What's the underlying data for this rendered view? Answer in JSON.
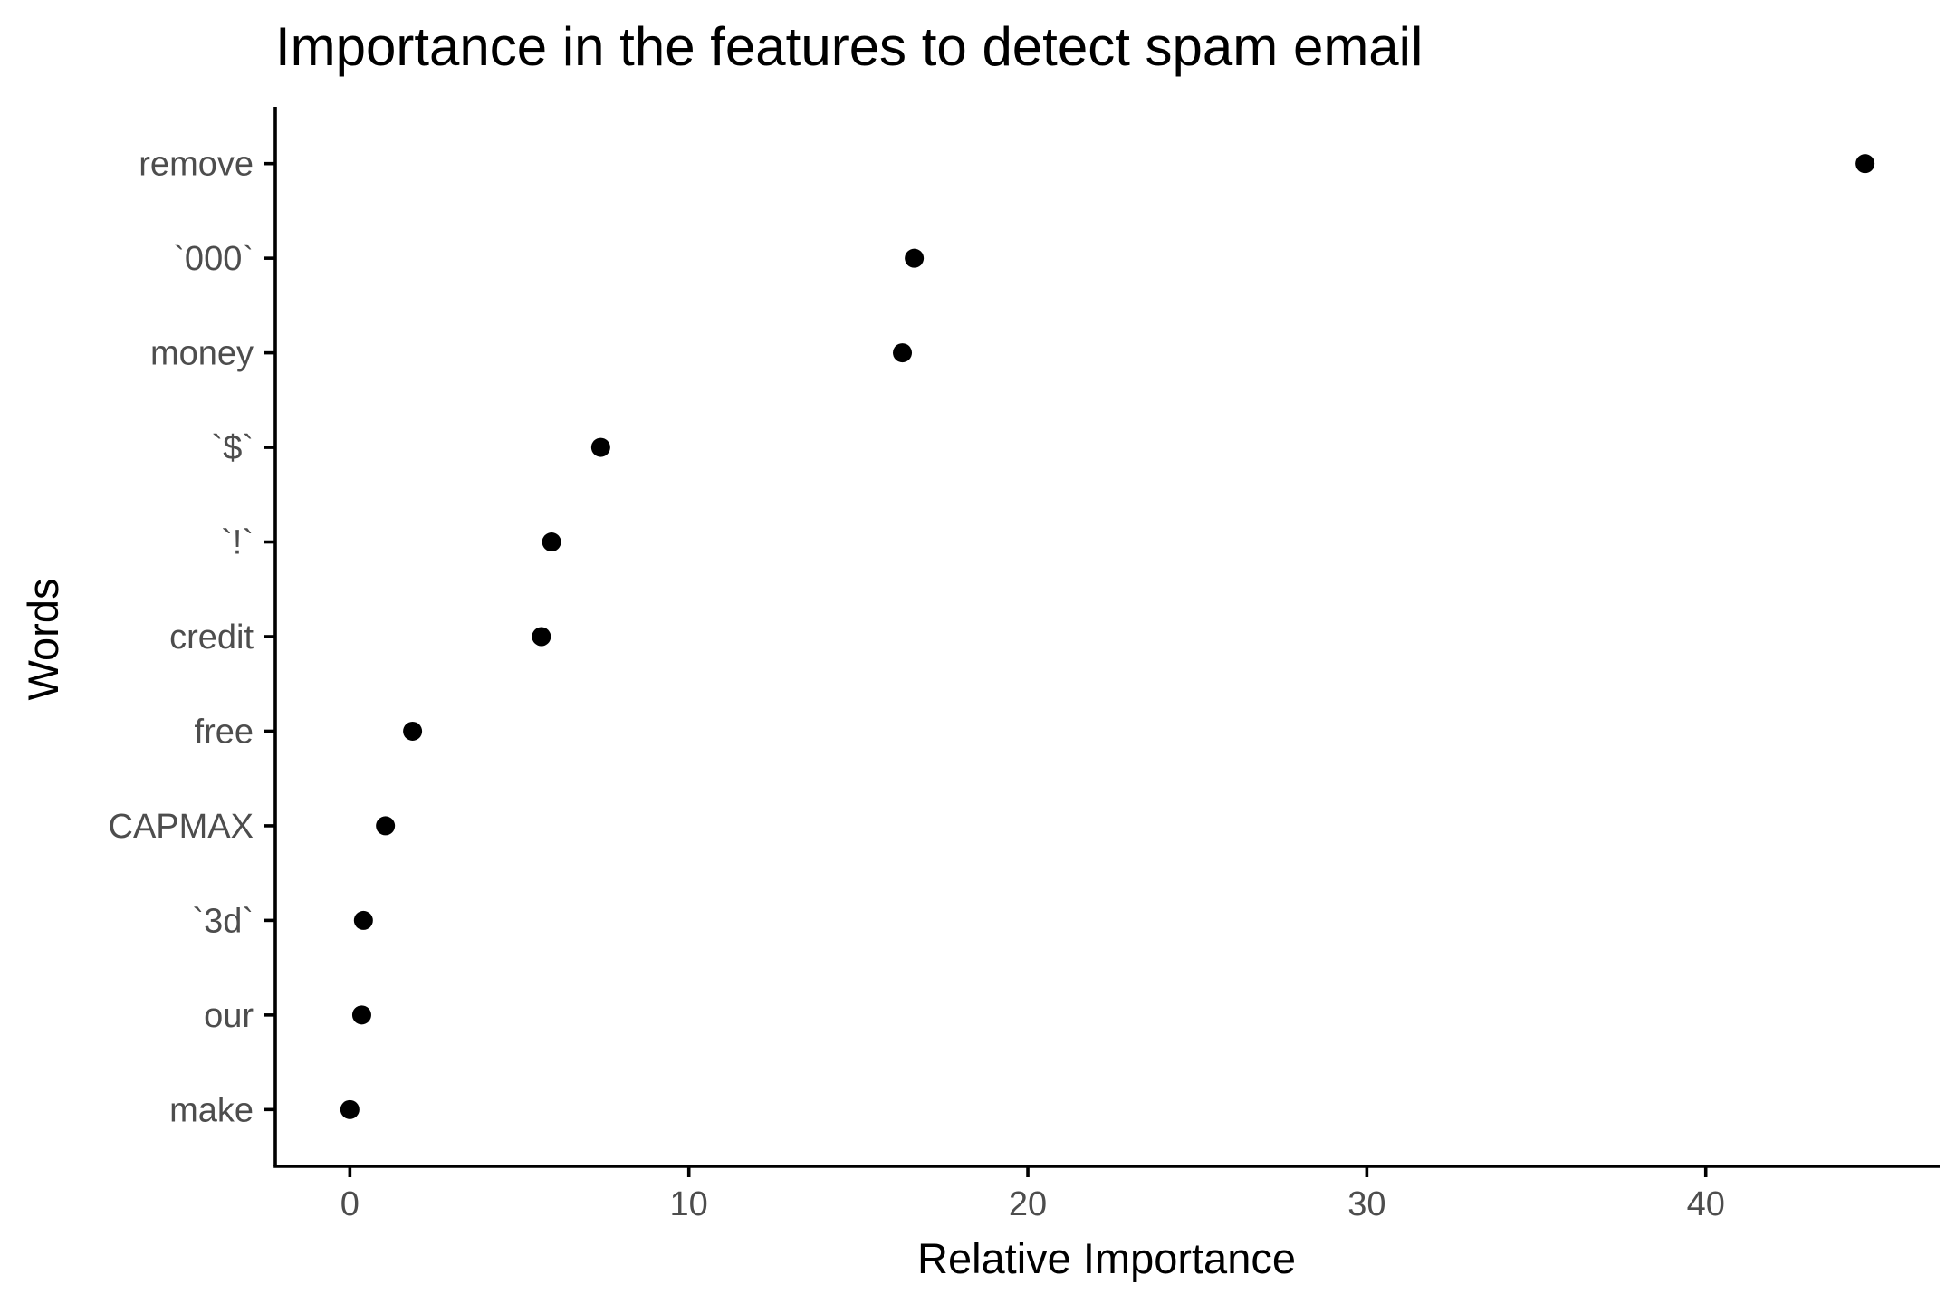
{
  "chart_data": {
    "type": "scatter",
    "title": "Importance in the features to detect spam email",
    "xlabel": "Relative Importance",
    "ylabel": "Words",
    "xlim": [
      -2.2,
      46.9
    ],
    "xticks": [
      0,
      10,
      20,
      30,
      40
    ],
    "categories": [
      "make",
      "our",
      "`3d`",
      "CAPMAX",
      "free",
      "credit",
      "`!`",
      "`$`",
      "money",
      "`000`",
      "remove"
    ],
    "values": [
      0.0,
      0.35,
      0.4,
      1.05,
      1.85,
      5.65,
      5.95,
      7.4,
      16.3,
      16.65,
      44.7
    ],
    "point_color": "#000000",
    "grid": false,
    "legend": "none"
  }
}
